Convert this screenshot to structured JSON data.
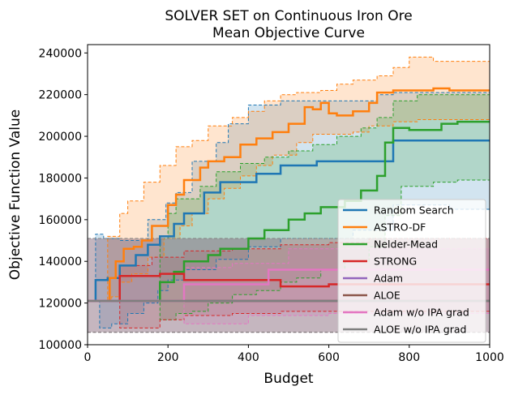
{
  "chart_data": {
    "type": "line",
    "title_line1": "SOLVER SET on Continuous Iron Ore",
    "title_line2": "Mean Objective Curve",
    "xlabel": "Budget",
    "ylabel": "Objective Function Value",
    "xlim": [
      0,
      1000
    ],
    "ylim": [
      100000,
      244000
    ],
    "xticks": [
      0,
      200,
      400,
      600,
      800,
      1000
    ],
    "xtick_labels": [
      "0",
      "200",
      "400",
      "600",
      "800",
      "1000"
    ],
    "yticks": [
      100000,
      120000,
      140000,
      160000,
      180000,
      200000,
      220000,
      240000
    ],
    "ytick_labels": [
      "100000",
      "120000",
      "140000",
      "160000",
      "180000",
      "200000",
      "220000",
      "240000"
    ],
    "grid": false,
    "legend_position": "lower-right",
    "series": [
      {
        "name": "Random Search",
        "color": "#1f77b4",
        "mean": [
          [
            0,
            121000
          ],
          [
            20,
            131000
          ],
          [
            50,
            132000
          ],
          [
            80,
            138000
          ],
          [
            120,
            143000
          ],
          [
            150,
            148000
          ],
          [
            180,
            152000
          ],
          [
            215,
            158000
          ],
          [
            240,
            163000
          ],
          [
            290,
            173000
          ],
          [
            330,
            178000
          ],
          [
            420,
            182000
          ],
          [
            480,
            186000
          ],
          [
            570,
            188000
          ],
          [
            640,
            188000
          ],
          [
            760,
            198000
          ],
          [
            1000,
            198000
          ]
        ],
        "upper": [
          [
            0,
            121000
          ],
          [
            20,
            153000
          ],
          [
            40,
            151000
          ],
          [
            80,
            150000
          ],
          [
            150,
            160000
          ],
          [
            195,
            168000
          ],
          [
            220,
            173000
          ],
          [
            260,
            188000
          ],
          [
            320,
            197000
          ],
          [
            350,
            206000
          ],
          [
            400,
            215000
          ],
          [
            480,
            217000
          ],
          [
            560,
            217000
          ],
          [
            640,
            217000
          ],
          [
            720,
            220000
          ],
          [
            760,
            221000
          ],
          [
            1000,
            221000
          ]
        ],
        "lower": [
          [
            0,
            121000
          ],
          [
            30,
            108000
          ],
          [
            60,
            110000
          ],
          [
            100,
            115000
          ],
          [
            140,
            120000
          ],
          [
            175,
            126000
          ],
          [
            200,
            131000
          ],
          [
            240,
            136000
          ],
          [
            320,
            141000
          ],
          [
            400,
            147000
          ],
          [
            480,
            151000
          ],
          [
            560,
            151000
          ],
          [
            660,
            155000
          ],
          [
            760,
            167000
          ],
          [
            900,
            165000
          ],
          [
            1000,
            165000
          ]
        ]
      },
      {
        "name": "ASTRO-DF",
        "color": "#ff7f0e",
        "mean": [
          [
            0,
            121000
          ],
          [
            40,
            121000
          ],
          [
            55,
            132000
          ],
          [
            70,
            140000
          ],
          [
            90,
            146000
          ],
          [
            115,
            147000
          ],
          [
            135,
            150000
          ],
          [
            160,
            157000
          ],
          [
            200,
            167000
          ],
          [
            220,
            172000
          ],
          [
            240,
            179000
          ],
          [
            280,
            185000
          ],
          [
            300,
            188000
          ],
          [
            340,
            190000
          ],
          [
            380,
            196000
          ],
          [
            420,
            199000
          ],
          [
            460,
            202000
          ],
          [
            500,
            206000
          ],
          [
            540,
            214000
          ],
          [
            560,
            213000
          ],
          [
            580,
            216000
          ],
          [
            600,
            211000
          ],
          [
            620,
            210000
          ],
          [
            660,
            212000
          ],
          [
            700,
            216000
          ],
          [
            720,
            221000
          ],
          [
            760,
            222000
          ],
          [
            820,
            222000
          ],
          [
            860,
            223000
          ],
          [
            900,
            222000
          ],
          [
            1000,
            222000
          ]
        ],
        "upper": [
          [
            0,
            121000
          ],
          [
            50,
            152000
          ],
          [
            80,
            163000
          ],
          [
            100,
            169000
          ],
          [
            140,
            178000
          ],
          [
            180,
            186000
          ],
          [
            220,
            195000
          ],
          [
            260,
            198000
          ],
          [
            300,
            205000
          ],
          [
            360,
            209000
          ],
          [
            400,
            212000
          ],
          [
            440,
            217000
          ],
          [
            480,
            220000
          ],
          [
            520,
            221000
          ],
          [
            580,
            222000
          ],
          [
            620,
            225000
          ],
          [
            660,
            227000
          ],
          [
            720,
            229000
          ],
          [
            760,
            233000
          ],
          [
            800,
            238000
          ],
          [
            860,
            236000
          ],
          [
            1000,
            236000
          ]
        ],
        "lower": [
          [
            0,
            121000
          ],
          [
            40,
            121000
          ],
          [
            60,
            123000
          ],
          [
            80,
            130000
          ],
          [
            110,
            134000
          ],
          [
            150,
            142000
          ],
          [
            190,
            151000
          ],
          [
            230,
            157000
          ],
          [
            260,
            163000
          ],
          [
            300,
            170000
          ],
          [
            340,
            175000
          ],
          [
            380,
            181000
          ],
          [
            420,
            186000
          ],
          [
            460,
            191000
          ],
          [
            520,
            197000
          ],
          [
            560,
            201000
          ],
          [
            620,
            201000
          ],
          [
            660,
            202000
          ],
          [
            700,
            205000
          ],
          [
            760,
            207000
          ],
          [
            820,
            208000
          ],
          [
            900,
            208000
          ],
          [
            1000,
            208000
          ]
        ]
      },
      {
        "name": "Nelder-Mead",
        "color": "#2ca02c",
        "mean": [
          [
            0,
            121000
          ],
          [
            50,
            121000
          ],
          [
            100,
            121000
          ],
          [
            150,
            121000
          ],
          [
            180,
            130000
          ],
          [
            215,
            135000
          ],
          [
            240,
            140000
          ],
          [
            300,
            143000
          ],
          [
            330,
            146000
          ],
          [
            400,
            151000
          ],
          [
            440,
            155000
          ],
          [
            500,
            160000
          ],
          [
            540,
            163000
          ],
          [
            580,
            166000
          ],
          [
            640,
            169000
          ],
          [
            680,
            174000
          ],
          [
            720,
            181000
          ],
          [
            740,
            197000
          ],
          [
            760,
            204000
          ],
          [
            800,
            203000
          ],
          [
            880,
            206000
          ],
          [
            920,
            207000
          ],
          [
            1000,
            207000
          ]
        ],
        "upper": [
          [
            0,
            121000
          ],
          [
            50,
            121000
          ],
          [
            150,
            121000
          ],
          [
            180,
            151000
          ],
          [
            200,
            163000
          ],
          [
            220,
            170000
          ],
          [
            280,
            176000
          ],
          [
            320,
            183000
          ],
          [
            380,
            187000
          ],
          [
            440,
            190000
          ],
          [
            500,
            193000
          ],
          [
            560,
            196000
          ],
          [
            620,
            200000
          ],
          [
            680,
            204000
          ],
          [
            720,
            209000
          ],
          [
            760,
            217000
          ],
          [
            820,
            220000
          ],
          [
            1000,
            220000
          ]
        ],
        "lower": [
          [
            0,
            121000
          ],
          [
            50,
            121000
          ],
          [
            150,
            121000
          ],
          [
            180,
            112000
          ],
          [
            220,
            115000
          ],
          [
            260,
            116000
          ],
          [
            300,
            120000
          ],
          [
            360,
            124000
          ],
          [
            420,
            126000
          ],
          [
            480,
            130000
          ],
          [
            520,
            132000
          ],
          [
            580,
            136000
          ],
          [
            640,
            140000
          ],
          [
            700,
            147000
          ],
          [
            740,
            162000
          ],
          [
            780,
            176000
          ],
          [
            860,
            178000
          ],
          [
            920,
            179000
          ],
          [
            1000,
            179000
          ]
        ]
      },
      {
        "name": "STRONG",
        "color": "#d62728",
        "mean": [
          [
            0,
            121000
          ],
          [
            80,
            133000
          ],
          [
            180,
            134000
          ],
          [
            240,
            131000
          ],
          [
            480,
            128000
          ],
          [
            600,
            129000
          ],
          [
            700,
            129000
          ],
          [
            900,
            129000
          ],
          [
            1000,
            129000
          ]
        ],
        "upper": [
          [
            0,
            121000
          ],
          [
            80,
            138000
          ],
          [
            160,
            142000
          ],
          [
            240,
            145000
          ],
          [
            360,
            146000
          ],
          [
            480,
            148000
          ],
          [
            600,
            149000
          ],
          [
            700,
            151000
          ],
          [
            1000,
            151000
          ]
        ],
        "lower": [
          [
            0,
            121000
          ],
          [
            80,
            108000
          ],
          [
            180,
            112000
          ],
          [
            240,
            114000
          ],
          [
            360,
            115000
          ],
          [
            480,
            116000
          ],
          [
            600,
            116000
          ],
          [
            800,
            116000
          ],
          [
            1000,
            116000
          ]
        ]
      },
      {
        "name": "Adam",
        "color": "#9467bd",
        "mean": [
          [
            0,
            121000
          ],
          [
            1000,
            121000
          ]
        ],
        "upper": [
          [
            0,
            151000
          ],
          [
            1000,
            151000
          ]
        ],
        "lower": [
          [
            0,
            106000
          ],
          [
            1000,
            106000
          ]
        ]
      },
      {
        "name": "ALOE",
        "color": "#8c564b",
        "mean": [
          [
            0,
            121000
          ],
          [
            1000,
            121000
          ]
        ],
        "upper": [
          [
            0,
            151000
          ],
          [
            1000,
            151000
          ]
        ],
        "lower": [
          [
            0,
            106000
          ],
          [
            1000,
            106000
          ]
        ]
      },
      {
        "name": "Adam w/o IPA grad",
        "color": "#e377c2",
        "mean": [
          [
            0,
            121000
          ],
          [
            240,
            129000
          ],
          [
            450,
            136000
          ],
          [
            700,
            136000
          ],
          [
            1000,
            136000
          ]
        ],
        "upper": [
          [
            0,
            121000
          ],
          [
            240,
            137000
          ],
          [
            360,
            139000
          ],
          [
            500,
            146000
          ],
          [
            1000,
            146000
          ]
        ],
        "lower": [
          [
            0,
            121000
          ],
          [
            240,
            110000
          ],
          [
            400,
            114000
          ],
          [
            600,
            115000
          ],
          [
            1000,
            115000
          ]
        ]
      },
      {
        "name": "ALOE w/o IPA grad",
        "color": "#7f7f7f",
        "mean": [
          [
            0,
            121000
          ],
          [
            1000,
            121000
          ]
        ],
        "upper": [
          [
            0,
            151000
          ],
          [
            1000,
            151000
          ]
        ],
        "lower": [
          [
            0,
            106000
          ],
          [
            1000,
            106000
          ]
        ]
      }
    ]
  }
}
